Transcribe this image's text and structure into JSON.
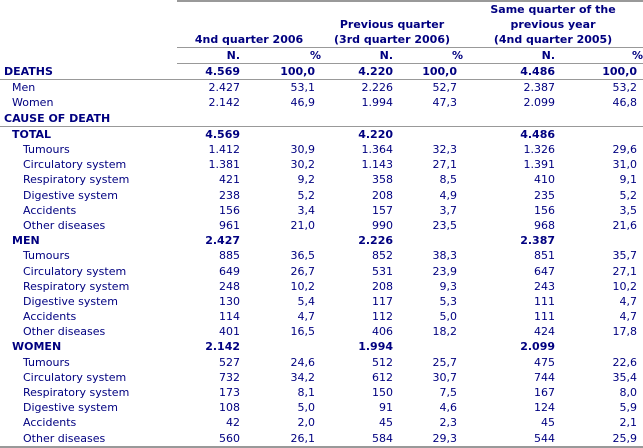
{
  "header": {
    "groups": [
      {
        "lines": [
          "4nd quarter 2006"
        ]
      },
      {
        "lines": [
          "Previous quarter",
          "(3rd quarter 2006)"
        ]
      },
      {
        "lines": [
          "Same quarter of the",
          "previous year",
          "(4nd quarter 2005)"
        ]
      }
    ],
    "n_label": "N.",
    "pct_label": "%"
  },
  "rows": [
    {
      "type": "section",
      "label": "DEATHS",
      "v": [
        "4.569",
        "100,0",
        "4.220",
        "100,0",
        "4.486",
        "100,0"
      ]
    },
    {
      "type": "sub",
      "label": "Men",
      "v": [
        "2.427",
        "53,1",
        "2.226",
        "52,7",
        "2.387",
        "53,2"
      ]
    },
    {
      "type": "sub",
      "label": "Women",
      "v": [
        "2.142",
        "46,9",
        "1.994",
        "47,3",
        "2.099",
        "46,8"
      ]
    },
    {
      "type": "section",
      "label": "CAUSE OF DEATH",
      "v": [
        "",
        "",
        "",
        "",
        "",
        ""
      ]
    },
    {
      "type": "group",
      "label": "TOTAL",
      "v": [
        "4.569",
        "",
        "4.220",
        "",
        "4.486",
        ""
      ]
    },
    {
      "type": "item",
      "label": "Tumours",
      "v": [
        "1.412",
        "30,9",
        "1.364",
        "32,3",
        "1.326",
        "29,6"
      ]
    },
    {
      "type": "item",
      "label": "Circulatory system",
      "v": [
        "1.381",
        "30,2",
        "1.143",
        "27,1",
        "1.391",
        "31,0"
      ]
    },
    {
      "type": "item",
      "label": "Respiratory system",
      "v": [
        "421",
        "9,2",
        "358",
        "8,5",
        "410",
        "9,1"
      ]
    },
    {
      "type": "item",
      "label": "Digestive system",
      "v": [
        "238",
        "5,2",
        "208",
        "4,9",
        "235",
        "5,2"
      ]
    },
    {
      "type": "item",
      "label": "Accidents",
      "v": [
        "156",
        "3,4",
        "157",
        "3,7",
        "156",
        "3,5"
      ]
    },
    {
      "type": "item",
      "label": "Other diseases",
      "v": [
        "961",
        "21,0",
        "990",
        "23,5",
        "968",
        "21,6"
      ]
    },
    {
      "type": "group",
      "label": "MEN",
      "v": [
        "2.427",
        "",
        "2.226",
        "",
        "2.387",
        ""
      ]
    },
    {
      "type": "item",
      "label": "Tumours",
      "v": [
        "885",
        "36,5",
        "852",
        "38,3",
        "851",
        "35,7"
      ]
    },
    {
      "type": "item",
      "label": "Circulatory system",
      "v": [
        "649",
        "26,7",
        "531",
        "23,9",
        "647",
        "27,1"
      ]
    },
    {
      "type": "item",
      "label": "Respiratory system",
      "v": [
        "248",
        "10,2",
        "208",
        "9,3",
        "243",
        "10,2"
      ]
    },
    {
      "type": "item",
      "label": "Digestive system",
      "v": [
        "130",
        "5,4",
        "117",
        "5,3",
        "111",
        "4,7"
      ]
    },
    {
      "type": "item",
      "label": "Accidents",
      "v": [
        "114",
        "4,7",
        "112",
        "5,0",
        "111",
        "4,7"
      ]
    },
    {
      "type": "item",
      "label": "Other diseases",
      "v": [
        "401",
        "16,5",
        "406",
        "18,2",
        "424",
        "17,8"
      ]
    },
    {
      "type": "group",
      "label": "WOMEN",
      "v": [
        "2.142",
        "",
        "1.994",
        "",
        "2.099",
        ""
      ]
    },
    {
      "type": "item",
      "label": "Tumours",
      "v": [
        "527",
        "24,6",
        "512",
        "25,7",
        "475",
        "22,6"
      ]
    },
    {
      "type": "item",
      "label": "Circulatory system",
      "v": [
        "732",
        "34,2",
        "612",
        "30,7",
        "744",
        "35,4"
      ]
    },
    {
      "type": "item",
      "label": "Respiratory system",
      "v": [
        "173",
        "8,1",
        "150",
        "7,5",
        "167",
        "8,0"
      ]
    },
    {
      "type": "item",
      "label": "Digestive system",
      "v": [
        "108",
        "5,0",
        "91",
        "4,6",
        "124",
        "5,9"
      ]
    },
    {
      "type": "item",
      "label": "Accidents",
      "v": [
        "42",
        "2,0",
        "45",
        "2,3",
        "45",
        "2,1"
      ]
    },
    {
      "type": "item",
      "label": "Other diseases",
      "v": [
        "560",
        "26,1",
        "584",
        "29,3",
        "544",
        "25,9"
      ]
    }
  ]
}
